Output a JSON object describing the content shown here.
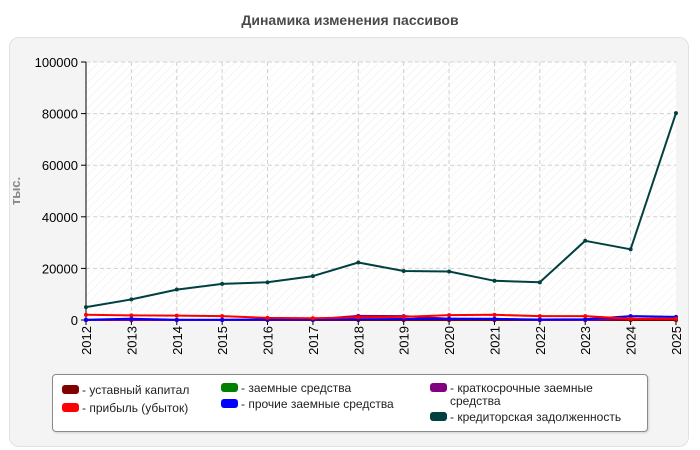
{
  "chart_data": {
    "type": "line",
    "title": "Динамика изменения пассивов",
    "ylabel": "тыс.",
    "xlabel": "",
    "ylim": [
      0,
      100000
    ],
    "yticks": [
      0,
      20000,
      40000,
      60000,
      80000,
      100000
    ],
    "grid": true,
    "legend_position": "bottom",
    "x": [
      "2012",
      "2013",
      "2014",
      "2015",
      "2016",
      "2017",
      "2018",
      "2019",
      "2020",
      "2021",
      "2022",
      "2023",
      "2024",
      "2025"
    ],
    "series": [
      {
        "name": "уставный капитал",
        "color": "#800000",
        "values": [
          10,
          10,
          10,
          10,
          10,
          10,
          10,
          10,
          10,
          10,
          10,
          10,
          10,
          10
        ]
      },
      {
        "name": "прибыль (убыток)",
        "color": "#ff0000",
        "values": [
          2000,
          1800,
          1700,
          1500,
          800,
          700,
          1000,
          1200,
          1900,
          2000,
          1500,
          1500,
          500,
          500
        ]
      },
      {
        "name": "заемные средства",
        "color": "#008000",
        "values": [
          0,
          0,
          0,
          0,
          0,
          0,
          0,
          0,
          0,
          0,
          0,
          0,
          0,
          0
        ]
      },
      {
        "name": "прочие заемные средства",
        "color": "#0000ff",
        "values": [
          100,
          500,
          100,
          100,
          200,
          200,
          300,
          400,
          500,
          400,
          200,
          300,
          1500,
          1200
        ]
      },
      {
        "name": "краткосрочные заемные средства",
        "color": "#800080",
        "values": [
          0,
          0,
          0,
          0,
          100,
          200,
          1600,
          1500,
          500,
          500,
          0,
          0,
          500,
          500
        ]
      },
      {
        "name": "кредиторская задолженность",
        "color": "#004040",
        "values": [
          5000,
          8000,
          11800,
          14000,
          14600,
          17000,
          22300,
          19000,
          18800,
          15200,
          14600,
          30700,
          27400,
          80200
        ]
      }
    ]
  }
}
